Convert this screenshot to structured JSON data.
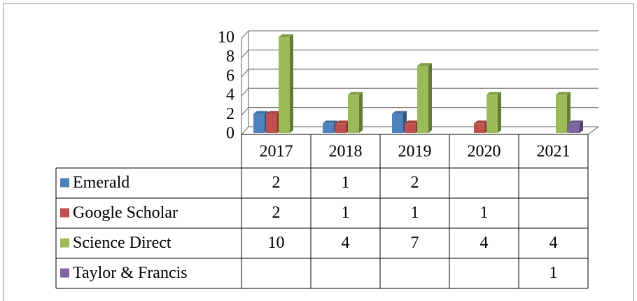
{
  "chart_data": {
    "type": "bar3d",
    "categories": [
      "2017",
      "2018",
      "2019",
      "2020",
      "2021"
    ],
    "series": [
      {
        "name": "Emerald",
        "color": "#4f81bd",
        "values": [
          2,
          1,
          2,
          null,
          null
        ]
      },
      {
        "name": "Google Scholar",
        "color": "#c0504d",
        "values": [
          2,
          1,
          1,
          1,
          null
        ]
      },
      {
        "name": "Science Direct",
        "color": "#9bbb59",
        "values": [
          10,
          4,
          7,
          4,
          4
        ]
      },
      {
        "name": "Taylor & Francis",
        "color": "#8064a2",
        "values": [
          null,
          null,
          null,
          null,
          1
        ]
      }
    ],
    "ylim": [
      0,
      10
    ],
    "yticks": [
      0,
      2,
      4,
      6,
      8,
      10
    ],
    "grid": true,
    "data_table": true
  }
}
